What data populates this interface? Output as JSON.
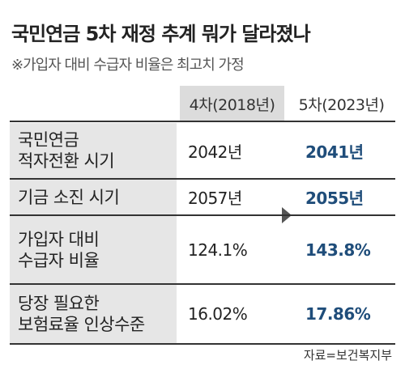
{
  "title": "국민연금 5차 재정 추계 뭐가 달라졌나",
  "subtitle": "※가입자 대비 수급자 비율은 최고치 가정",
  "table": {
    "header": [
      "4차(2018년)",
      "5차(2023년)"
    ],
    "rows": [
      {
        "label": [
          "국민연금",
          "적자전환 시기"
        ],
        "cells": [
          "2042년",
          "2041년"
        ]
      },
      {
        "label": [
          "기금 소진 시기"
        ],
        "cells": [
          "2057년",
          "2055년"
        ]
      },
      {
        "label": [
          "가입자 대비",
          "수급자 비율"
        ],
        "cells": [
          "124.1%",
          "143.8%"
        ]
      },
      {
        "label": [
          "당장 필요한",
          "보험료율 인상수준"
        ],
        "cells": [
          "16.02%",
          "17.86%"
        ]
      }
    ]
  },
  "source": "자료=보건복지부"
}
